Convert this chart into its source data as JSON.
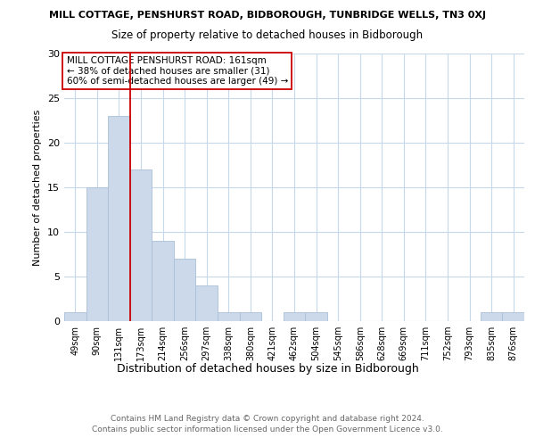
{
  "suptitle": "MILL COTTAGE, PENSHURST ROAD, BIDBOROUGH, TUNBRIDGE WELLS, TN3 0XJ",
  "title": "Size of property relative to detached houses in Bidborough",
  "xlabel": "Distribution of detached houses by size in Bidborough",
  "ylabel": "Number of detached properties",
  "categories": [
    "49sqm",
    "90sqm",
    "131sqm",
    "173sqm",
    "214sqm",
    "256sqm",
    "297sqm",
    "338sqm",
    "380sqm",
    "421sqm",
    "462sqm",
    "504sqm",
    "545sqm",
    "586sqm",
    "628sqm",
    "669sqm",
    "711sqm",
    "752sqm",
    "793sqm",
    "835sqm",
    "876sqm"
  ],
  "values": [
    1,
    15,
    23,
    17,
    9,
    7,
    4,
    1,
    1,
    0,
    1,
    1,
    0,
    0,
    0,
    0,
    0,
    0,
    0,
    1,
    1
  ],
  "bar_color": "#ccd9ea",
  "bar_edge_color": "#aabfd8",
  "vline_x": 2.5,
  "vline_color": "#cc0000",
  "annotation_lines": [
    "MILL COTTAGE PENSHURST ROAD: 161sqm",
    "← 38% of detached houses are smaller (31)",
    "60% of semi-detached houses are larger (49) →"
  ],
  "ylim": [
    0,
    30
  ],
  "yticks": [
    0,
    5,
    10,
    15,
    20,
    25,
    30
  ],
  "footer_line1": "Contains HM Land Registry data © Crown copyright and database right 2024.",
  "footer_line2": "Contains public sector information licensed under the Open Government Licence v3.0.",
  "bg_color": "#ffffff",
  "plot_bg_color": "#ffffff",
  "grid_color": "#c8d8ec"
}
